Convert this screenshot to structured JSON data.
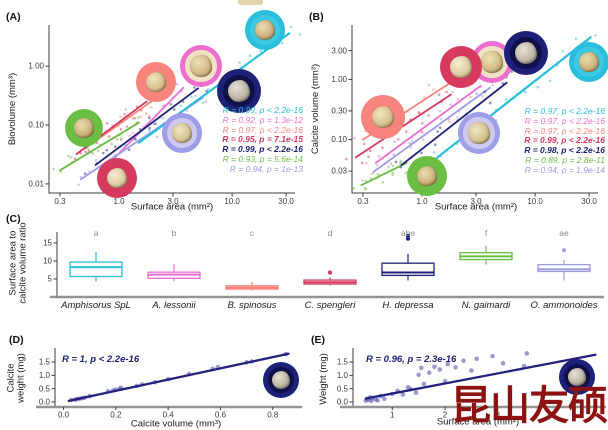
{
  "watermark": {
    "text": "昆山友硕",
    "color": "#8C1212"
  },
  "species": [
    {
      "key": "amphisorus",
      "label": "Amphisorus SpL",
      "color": "#29BEDC",
      "letter": "a",
      "icon": {
        "name": "amphisorus-foram-photo-icon",
        "photo": "#3EC9E2",
        "shell_light": "#EADFB2",
        "shell_mid": "#CCB27E",
        "shell_dark": "#9A7E4E"
      }
    },
    {
      "key": "a_lessonii",
      "label": "A. lessonii",
      "color": "#EC6FD0",
      "letter": "b",
      "icon": {
        "name": "lessonii-foram-photo-icon",
        "photo": "#F2E2C4",
        "shell_light": "#EFE3B8",
        "shell_mid": "#D3BA84",
        "shell_dark": "#A68750"
      }
    },
    {
      "key": "b_spinosus",
      "label": "B. spinosus",
      "color": "#F8857D",
      "letter": "c",
      "icon": {
        "name": "spinosus-foram-photo-icon",
        "photo": "#F8857D",
        "shell_light": "#F2E6C0",
        "shell_mid": "#D8C08C",
        "shell_dark": "#AA8B55"
      }
    },
    {
      "key": "c_spengleri",
      "label": "C. spengleri",
      "color": "#D63A5E",
      "letter": "d",
      "icon": {
        "name": "spengleri-foram-photo-icon",
        "photo": "#D63A5E",
        "shell_light": "#F6EDD2",
        "shell_mid": "#DECBA0",
        "shell_dark": "#B09468"
      }
    },
    {
      "key": "h_depressa",
      "label": "H. depressa",
      "color": "#1E2178",
      "letter": "abe",
      "icon": {
        "name": "depressa-foram-photo-icon",
        "photo": "#10104A",
        "shell_light": "#E6E1D6",
        "shell_mid": "#BDB5A6",
        "shell_dark": "#877F6E"
      }
    },
    {
      "key": "n_gaimardi",
      "label": "N. gaimardi",
      "color": "#6BBE44",
      "letter": "f",
      "icon": {
        "name": "gaimardi-foram-photo-icon",
        "photo": "#6BBE44",
        "shell_light": "#EADFB2",
        "shell_mid": "#CBB178",
        "shell_dark": "#97793F"
      }
    },
    {
      "key": "o_ammonoides",
      "label": "O. ammonoides",
      "color": "#9D9DE8",
      "letter": "ae",
      "icon": {
        "name": "ammonoides-foram-photo-icon",
        "photo": "#CFC9EF",
        "shell_light": "#EFE6C2",
        "shell_mid": "#D6C391",
        "shell_dark": "#A98E58"
      }
    }
  ],
  "panels": {
    "A": {
      "tag": "(A)",
      "xlabel": "Surface area (mm²)",
      "ylabel": "Biovolume (mm³)"
    },
    "B": {
      "tag": "(B)",
      "xlabel": "Surface area (mm²)",
      "ylabel": "Calcite volume (mm³)"
    },
    "C": {
      "tag": "(C)",
      "ylabel_line1": "Surface area to",
      "ylabel_line2": "calcite volume ratio"
    },
    "D": {
      "tag": "(D)",
      "xlabel": "Calcite volume (mm³)",
      "ylabel_line1": "Calcite",
      "ylabel_line2": "weight (mg)",
      "stat": "R = 1, p < 2.2e-16"
    },
    "E": {
      "tag": "(E)",
      "xlabel": "Surface area (mm²)",
      "ylabel": "Weight (mg)",
      "stat": "R = 0.96, p = 2.3e-16"
    }
  },
  "chart_data": [
    {
      "id": "A",
      "type": "scatter",
      "xscale": "log",
      "yscale": "log",
      "title": "",
      "xlabel": "Surface area (mm²)",
      "ylabel": "Biovolume (mm³)",
      "xlim": [
        0.24,
        36
      ],
      "ylim": [
        0.007,
        5
      ],
      "xticks": [
        0.3,
        1.0,
        3.0,
        10.0,
        30.0
      ],
      "xtick_labels": [
        "0.3",
        "1.0",
        "3.0",
        "10.0",
        "30.0"
      ],
      "yticks": [
        0.01,
        0.1,
        1.0
      ],
      "ytick_labels": [
        "0.01",
        "0.10",
        "1.00"
      ],
      "grid": false,
      "legend_position": "inside-right",
      "series": [
        {
          "species": "amphisorus",
          "line": [
            [
              1.5,
              0.05
            ],
            [
              32,
              3.6
            ]
          ],
          "stat": "R = 0.99, p < 2.2e-16"
        },
        {
          "species": "a_lessonii",
          "line": [
            [
              0.85,
              0.024
            ],
            [
              3.7,
              0.43
            ]
          ],
          "stat": "R = 0.92, p = 1.3e-12"
        },
        {
          "species": "b_spinosus",
          "line": [
            [
              0.5,
              0.04
            ],
            [
              2.2,
              0.3
            ]
          ],
          "stat": "R = 0.97, p < 2.2e-16"
        },
        {
          "species": "c_spengleri",
          "line": [
            [
              0.42,
              0.032
            ],
            [
              1.75,
              0.25
            ]
          ],
          "stat": "R = 0.95, p = 7.1e-15"
        },
        {
          "species": "h_depressa",
          "line": [
            [
              0.62,
              0.021
            ],
            [
              5.0,
              0.42
            ]
          ],
          "stat": "R = 0.99, p < 2.2e-16"
        },
        {
          "species": "n_gaimardi",
          "line": [
            [
              0.3,
              0.017
            ],
            [
              1.5,
              0.11
            ]
          ],
          "stat": "R = 0.93, p = 5.6e-14"
        },
        {
          "species": "o_ammonoides",
          "line": [
            [
              0.46,
              0.012
            ],
            [
              5.5,
              0.29
            ]
          ],
          "stat": "R = 0.94, p = 1e-13"
        }
      ]
    },
    {
      "id": "B",
      "type": "scatter",
      "xscale": "log",
      "yscale": "log",
      "title": "",
      "xlabel": "Surface area (mm²)",
      "ylabel": "Calcite volume (mm³)",
      "xlim": [
        0.24,
        36
      ],
      "ylim": [
        0.013,
        8
      ],
      "xticks": [
        0.3,
        1.0,
        3.0,
        10.0,
        30.0
      ],
      "xtick_labels": [
        "0.3",
        "1.0",
        "3.0",
        "10.0",
        "30.0"
      ],
      "yticks": [
        0.03,
        0.1,
        0.3,
        1.0,
        3.0
      ],
      "ytick_labels": [
        "0.03",
        "0.10",
        "0.30",
        "1.00",
        "3.00"
      ],
      "grid": false,
      "legend_position": "inside-right",
      "series": [
        {
          "species": "amphisorus",
          "line": [
            [
              1.28,
              0.046
            ],
            [
              31,
              5.0
            ]
          ],
          "stat": "R = 0.97, p < 2.2e-16"
        },
        {
          "species": "a_lessonii",
          "line": [
            [
              0.39,
              0.041
            ],
            [
              3.3,
              0.78
            ]
          ],
          "stat": "R = 0.97, p < 2.2e-16"
        },
        {
          "species": "b_spinosus",
          "line": [
            [
              0.3,
              0.1
            ],
            [
              1.9,
              0.95
            ]
          ],
          "stat": "R = 0.97, p < 2.2e-16"
        },
        {
          "species": "c_spengleri",
          "line": [
            [
              0.26,
              0.051
            ],
            [
              1.8,
              0.56
            ]
          ],
          "stat": "R = 0.99, p < 2.2e-16"
        },
        {
          "species": "h_depressa",
          "line": [
            [
              0.66,
              0.038
            ],
            [
              5.6,
              0.88
            ]
          ],
          "stat": "R = 0.98, p < 2.2e-16"
        },
        {
          "species": "n_gaimardi",
          "line": [
            [
              0.29,
              0.0175
            ],
            [
              0.73,
              0.041
            ]
          ],
          "stat": "R = 0.89, p = 2.8e-11"
        },
        {
          "species": "o_ammonoides",
          "line": [
            [
              0.37,
              0.029
            ],
            [
              4.0,
              0.73
            ]
          ],
          "stat": "R = 0.94, p = 1.9e-14"
        }
      ]
    },
    {
      "id": "C",
      "type": "boxplot",
      "title": "",
      "ylabel": "Surface area to calcite volume ratio",
      "yticks": [
        5,
        10,
        15
      ],
      "ytick_labels": [
        "5",
        "10",
        "15"
      ],
      "ylim": [
        0,
        18
      ],
      "categories": [
        "Amphisorus SpL",
        "A. lessonii",
        "B. spinosus",
        "C. spengleri",
        "H. depressa",
        "N. gaimardi",
        "O. ammonoides"
      ],
      "boxes": [
        {
          "species": "amphisorus",
          "letter": "a",
          "whisker_low": 4.3,
          "q1": 5.7,
          "median": 8.3,
          "q3": 9.7,
          "whisker_high": 12.5,
          "outliers": []
        },
        {
          "species": "a_lessonii",
          "letter": "b",
          "whisker_low": 4.4,
          "q1": 5.2,
          "median": 6.2,
          "q3": 6.9,
          "whisker_high": 9.2,
          "outliers": []
        },
        {
          "species": "b_spinosus",
          "letter": "c",
          "whisker_low": 1.8,
          "q1": 2.2,
          "median": 2.6,
          "q3": 3.1,
          "whisker_high": 4.1,
          "outliers": []
        },
        {
          "species": "c_spengleri",
          "letter": "d",
          "whisker_low": 3.2,
          "q1": 3.6,
          "median": 4.1,
          "q3": 4.7,
          "whisker_high": 5.4,
          "outliers": [
            6.8
          ]
        },
        {
          "species": "h_depressa",
          "letter": "abe",
          "whisker_low": 4.6,
          "q1": 6.0,
          "median": 6.8,
          "q3": 9.4,
          "whisker_high": 12.0,
          "outliers": [
            16.2,
            17.0
          ]
        },
        {
          "species": "n_gaimardi",
          "letter": "f",
          "whisker_low": 9.0,
          "q1": 10.4,
          "median": 11.3,
          "q3": 12.3,
          "whisker_high": 14.3,
          "outliers": []
        },
        {
          "species": "o_ammonoides",
          "letter": "ae",
          "whisker_low": 4.6,
          "q1": 7.1,
          "median": 7.7,
          "q3": 9.0,
          "whisker_high": 10.3,
          "outliers": [
            13.0
          ]
        }
      ]
    },
    {
      "id": "D",
      "type": "scatter",
      "xscale": "linear",
      "yscale": "linear",
      "title": "",
      "xlabel": "Calcite volume (mm³)",
      "ylabel": "Calcite weight (mg)",
      "xlim": [
        -0.025,
        0.885
      ],
      "ylim": [
        -0.15,
        1.95
      ],
      "xticks": [
        0.0,
        0.2,
        0.4,
        0.6,
        0.8
      ],
      "xtick_labels": [
        "0.0",
        "0.2",
        "0.4",
        "0.6",
        "0.8"
      ],
      "yticks": [
        0.0,
        0.5,
        1.0,
        1.5
      ],
      "ytick_labels": [
        "0.0",
        "0.5",
        "1.0",
        "1.5"
      ],
      "grid": false,
      "stat": "R = 1, p < 2.2e-16",
      "line": [
        [
          0.02,
          0.04
        ],
        [
          0.86,
          1.81
        ]
      ],
      "points": [
        [
          0.03,
          0.08
        ],
        [
          0.045,
          0.09
        ],
        [
          0.05,
          0.11
        ],
        [
          0.06,
          0.12
        ],
        [
          0.07,
          0.14
        ],
        [
          0.08,
          0.16
        ],
        [
          0.1,
          0.22
        ],
        [
          0.17,
          0.4
        ],
        [
          0.19,
          0.44
        ],
        [
          0.2,
          0.46
        ],
        [
          0.215,
          0.5
        ],
        [
          0.22,
          0.53
        ],
        [
          0.28,
          0.6
        ],
        [
          0.3,
          0.66
        ],
        [
          0.35,
          0.74
        ],
        [
          0.4,
          0.86
        ],
        [
          0.48,
          1.05
        ],
        [
          0.57,
          1.24
        ],
        [
          0.59,
          1.31
        ],
        [
          0.7,
          1.49
        ],
        [
          0.72,
          1.52
        ],
        [
          0.85,
          1.8
        ]
      ]
    },
    {
      "id": "E",
      "type": "scatter",
      "xscale": "linear",
      "yscale": "linear",
      "title": "",
      "xlabel": "Surface area (mm²)",
      "ylabel": "Weight (mg)",
      "xlim": [
        0.35,
        4.9
      ],
      "ylim": [
        -0.15,
        1.95
      ],
      "xticks": [
        1,
        2,
        3
      ],
      "xtick_labels": [
        "1",
        "2",
        "3"
      ],
      "yticks": [
        0.0,
        0.5,
        1.0,
        1.5
      ],
      "ytick_labels": [
        "0.0",
        "0.5",
        "1.0",
        "1.5"
      ],
      "grid": false,
      "stat": "R = 0.96, p = 2.3e-16",
      "line": [
        [
          0.5,
          0.13
        ],
        [
          4.85,
          1.77
        ]
      ],
      "points": [
        [
          0.5,
          0.05
        ],
        [
          0.52,
          0.12
        ],
        [
          0.55,
          0.08
        ],
        [
          0.58,
          0.18
        ],
        [
          0.6,
          0.04
        ],
        [
          0.62,
          0.14
        ],
        [
          0.68,
          0.1
        ],
        [
          0.72,
          0.06
        ],
        [
          0.78,
          0.22
        ],
        [
          0.85,
          0.12
        ],
        [
          1.0,
          0.3
        ],
        [
          1.1,
          0.42
        ],
        [
          1.2,
          0.28
        ],
        [
          1.3,
          0.55
        ],
        [
          1.35,
          0.48
        ],
        [
          1.45,
          0.35
        ],
        [
          1.5,
          1.02
        ],
        [
          1.55,
          1.28
        ],
        [
          1.6,
          0.68
        ],
        [
          1.7,
          1.1
        ],
        [
          1.8,
          1.32
        ],
        [
          1.9,
          1.22
        ],
        [
          2.0,
          0.78
        ],
        [
          2.05,
          1.42
        ],
        [
          2.2,
          1.3
        ],
        [
          2.35,
          1.55
        ],
        [
          2.5,
          1.18
        ],
        [
          2.6,
          1.62
        ],
        [
          2.9,
          1.72
        ],
        [
          3.1,
          1.45
        ],
        [
          3.5,
          1.35
        ],
        [
          3.55,
          1.82
        ]
      ]
    }
  ]
}
